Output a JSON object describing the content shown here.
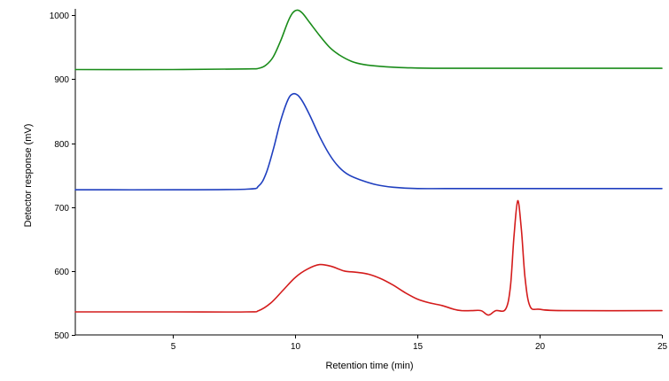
{
  "chart_data": {
    "type": "line",
    "title": "",
    "xlabel": "Retention time (min)",
    "ylabel": "Detector response (mV)",
    "xlim": [
      1,
      25
    ],
    "ylim": [
      500,
      1010
    ],
    "xticks": [
      5,
      10,
      15,
      20,
      25
    ],
    "yticks": [
      500,
      600,
      700,
      800,
      900,
      1000
    ],
    "grid": false,
    "legend": "none",
    "series": [
      {
        "color": "#1a8c1a",
        "x": [
          1,
          5,
          8,
          8.5,
          8.8,
          9.1,
          9.4,
          9.7,
          9.9,
          10.1,
          10.3,
          10.6,
          11.0,
          11.4,
          11.8,
          12.3,
          12.8,
          13.5,
          14.5,
          16,
          20,
          25
        ],
        "y": [
          915,
          915,
          916,
          917,
          922,
          935,
          960,
          990,
          1004,
          1008,
          1003,
          988,
          968,
          950,
          938,
          928,
          923,
          920,
          918,
          917,
          917,
          917
        ]
      },
      {
        "color": "#1f3fbf",
        "x": [
          1,
          5,
          8,
          8.5,
          8.8,
          9.1,
          9.4,
          9.7,
          9.9,
          10.1,
          10.3,
          10.6,
          11.0,
          11.4,
          11.8,
          12.2,
          12.7,
          13.3,
          14,
          15,
          17,
          20,
          25
        ],
        "y": [
          727,
          727,
          728,
          733,
          752,
          790,
          835,
          868,
          877,
          875,
          865,
          843,
          810,
          782,
          762,
          750,
          742,
          735,
          731,
          729,
          729,
          729,
          729
        ]
      },
      {
        "color": "#d41c1c",
        "x": [
          1,
          5,
          8,
          8.5,
          9.0,
          9.5,
          10.0,
          10.5,
          11.0,
          11.5,
          12.0,
          12.5,
          13.0,
          13.5,
          14.0,
          14.5,
          15.0,
          15.5,
          16.0,
          16.5,
          16.8,
          17.2,
          17.6,
          17.9,
          18.2,
          18.6,
          18.8,
          18.95,
          19.1,
          19.25,
          19.4,
          19.6,
          20.0,
          21.0,
          25
        ],
        "y": [
          536,
          536,
          536,
          538,
          550,
          570,
          590,
          603,
          610,
          607,
          600,
          598,
          595,
          588,
          578,
          566,
          556,
          550,
          546,
          540,
          538,
          538,
          538,
          531,
          538,
          540,
          575,
          655,
          710,
          665,
          590,
          545,
          540,
          538,
          538
        ]
      }
    ]
  }
}
